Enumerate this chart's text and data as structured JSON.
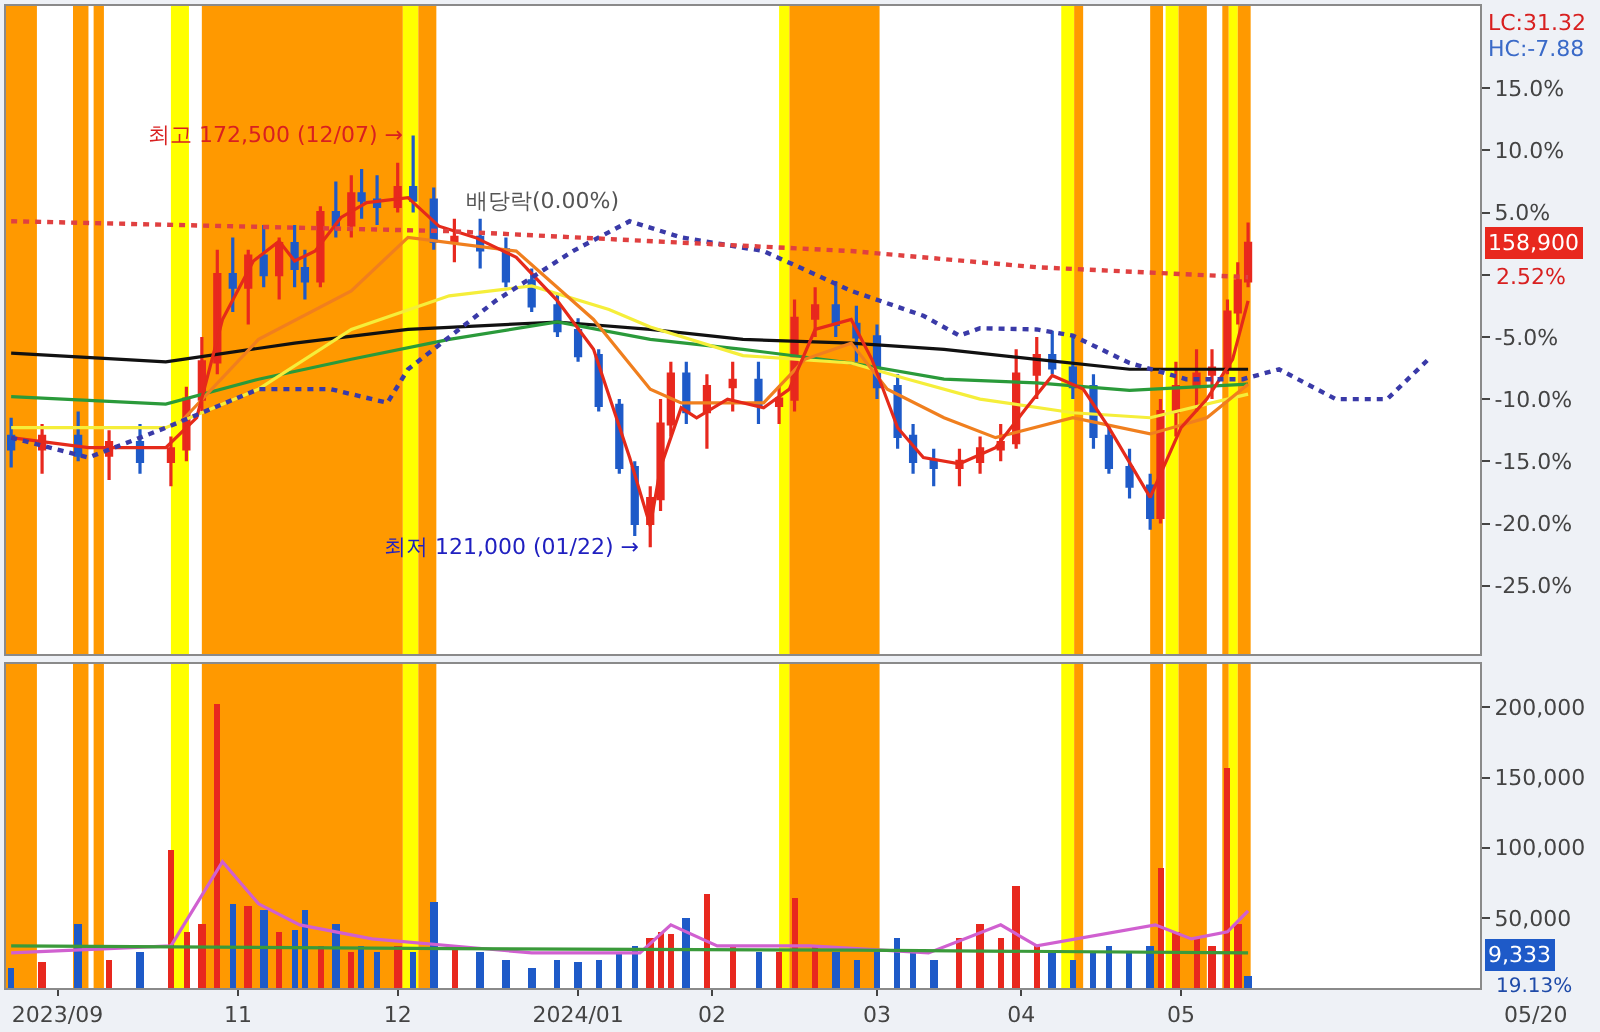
{
  "chart_data": [
    {
      "type": "candlestick",
      "x": [
        "2023-09-20",
        "2023-09-26",
        "2023-10-03",
        "2023-10-09",
        "2023-10-15",
        "2023-10-21",
        "2023-10-24",
        "2023-10-27",
        "2023-10-30",
        "2023-11-02",
        "2023-11-05",
        "2023-11-08",
        "2023-11-11",
        "2023-11-14",
        "2023-11-16",
        "2023-11-19",
        "2023-11-22",
        "2023-11-25",
        "2023-11-27",
        "2023-11-30",
        "2023-12-04",
        "2023-12-07",
        "2023-12-11",
        "2023-12-15",
        "2023-12-20",
        "2023-12-25",
        "2023-12-30",
        "2024-01-04",
        "2024-01-08",
        "2024-01-12",
        "2024-01-16",
        "2024-01-19",
        "2024-01-22",
        "2024-01-24",
        "2024-01-26",
        "2024-01-29",
        "2024-02-02",
        "2024-02-07",
        "2024-02-12",
        "2024-02-16",
        "2024-02-19",
        "2024-02-23",
        "2024-02-27",
        "2024-03-02",
        "2024-03-06",
        "2024-03-10",
        "2024-03-13",
        "2024-03-17",
        "2024-03-22",
        "2024-03-26",
        "2024-03-30",
        "2024-04-02",
        "2024-04-06",
        "2024-04-09",
        "2024-04-13",
        "2024-04-17",
        "2024-04-20",
        "2024-04-24",
        "2024-04-28",
        "2024-04-30",
        "2024-05-03",
        "2024-05-07",
        "2024-05-10",
        "2024-05-13",
        "2024-05-15",
        "2024-05-17"
      ],
      "ohlc": [
        [
          -13,
          -11.5,
          -15.5,
          -14
        ],
        [
          -14,
          -12,
          -16,
          -13
        ],
        [
          -13,
          -11,
          -15,
          -14.5
        ],
        [
          -14.5,
          -12.5,
          -16.5,
          -13.5
        ],
        [
          -13.5,
          -12,
          -16,
          -15
        ],
        [
          -15,
          -13,
          -17,
          -14
        ],
        [
          -14,
          -9,
          -15,
          -10
        ],
        [
          -10,
          -5,
          -11,
          -7
        ],
        [
          -7,
          2,
          -8,
          0
        ],
        [
          0,
          3,
          -3,
          -1
        ],
        [
          -1,
          2,
          -4,
          1.5
        ],
        [
          1.5,
          4,
          -1,
          0
        ],
        [
          0,
          3,
          -2,
          2.5
        ],
        [
          2.5,
          4,
          -1,
          0.5
        ],
        [
          0.5,
          2,
          -2,
          -0.5
        ],
        [
          -0.5,
          5.5,
          -1,
          5
        ],
        [
          5,
          7.5,
          3,
          4
        ],
        [
          4,
          8,
          3,
          6.5
        ],
        [
          6.5,
          8.5,
          4.5,
          6
        ],
        [
          6,
          8,
          4,
          5.5
        ],
        [
          5.5,
          9,
          5,
          7
        ],
        [
          7,
          11.2,
          5,
          6
        ],
        [
          6,
          7,
          2,
          2.7
        ],
        [
          2.7,
          4.5,
          1,
          3
        ],
        [
          3,
          4.5,
          0.5,
          2
        ],
        [
          2,
          3,
          -1,
          -0.5
        ],
        [
          -0.5,
          0.5,
          -3,
          -2.5
        ],
        [
          -2.5,
          -1.5,
          -5,
          -4.5
        ],
        [
          -4.5,
          -3.5,
          -7,
          -6.5
        ],
        [
          -6.5,
          -6,
          -11,
          -10.5
        ],
        [
          -10.5,
          -10,
          -16,
          -15.5
        ],
        [
          -15.5,
          -15,
          -21,
          -20
        ],
        [
          -20,
          -17,
          -21.9,
          -18
        ],
        [
          -18,
          -10,
          -19,
          -12
        ],
        [
          -12,
          -7,
          -13,
          -8
        ],
        [
          -8,
          -7,
          -12,
          -11
        ],
        [
          -11,
          -8,
          -14,
          -9
        ],
        [
          -9,
          -7,
          -11,
          -8.5
        ],
        [
          -8.5,
          -7,
          -12,
          -10.5
        ],
        [
          -10.5,
          -9,
          -12,
          -10
        ],
        [
          -10,
          -2,
          -11,
          -3.5
        ],
        [
          -3.5,
          -1,
          -5,
          -2.5
        ],
        [
          -2.5,
          -0.5,
          -5,
          -4
        ],
        [
          -4,
          -2.5,
          -7,
          -5
        ],
        [
          -5,
          -4,
          -10,
          -9
        ],
        [
          -9,
          -8,
          -14,
          -13
        ],
        [
          -13,
          -12,
          -16,
          -15
        ],
        [
          -15,
          -14,
          -17,
          -15.5
        ],
        [
          -15.5,
          -14,
          -17,
          -15
        ],
        [
          -15,
          -13,
          -16,
          -14
        ],
        [
          -14,
          -12,
          -15,
          -13.5
        ],
        [
          -13.5,
          -6,
          -14,
          -8
        ],
        [
          -8,
          -5,
          -10,
          -6.5
        ],
        [
          -6.5,
          -4.5,
          -8,
          -7.5
        ],
        [
          -7.5,
          -5,
          -10,
          -9
        ],
        [
          -9,
          -8,
          -14,
          -13
        ],
        [
          -13,
          -12,
          -16,
          -15.5
        ],
        [
          -15.5,
          -14,
          -18,
          -17
        ],
        [
          -17,
          -16,
          -20.5,
          -19.5
        ],
        [
          -19.5,
          -10,
          -20,
          -11
        ],
        [
          -11,
          -7,
          -13,
          -9
        ],
        [
          -9,
          -6,
          -11,
          -8
        ],
        [
          -8,
          -6,
          -10,
          -7.5
        ],
        [
          -7.5,
          -2,
          -8,
          -3
        ],
        [
          -3,
          1,
          -4,
          -0.5
        ],
        [
          -0.5,
          4.2,
          -1,
          2.52
        ]
      ],
      "colors": [
        "#1e5ac8",
        "#e8281e",
        "#1e5ac8",
        "#e8281e",
        "#1e5ac8",
        "#e8281e",
        "#e8281e",
        "#e8281e",
        "#e8281e",
        "#1e5ac8",
        "#e8281e",
        "#1e5ac8",
        "#e8281e",
        "#1e5ac8",
        "#1e5ac8",
        "#e8281e",
        "#1e5ac8",
        "#e8281e",
        "#1e5ac8",
        "#1e5ac8",
        "#e8281e",
        "#1e5ac8",
        "#1e5ac8",
        "#e8281e",
        "#1e5ac8",
        "#1e5ac8",
        "#1e5ac8",
        "#1e5ac8",
        "#1e5ac8",
        "#1e5ac8",
        "#1e5ac8",
        "#1e5ac8",
        "#e8281e",
        "#e8281e",
        "#e8281e",
        "#1e5ac8",
        "#e8281e",
        "#e8281e",
        "#1e5ac8",
        "#e8281e",
        "#e8281e",
        "#e8281e",
        "#1e5ac8",
        "#1e5ac8",
        "#1e5ac8",
        "#1e5ac8",
        "#1e5ac8",
        "#1e5ac8",
        "#e8281e",
        "#e8281e",
        "#e8281e",
        "#e8281e",
        "#e8281e",
        "#1e5ac8",
        "#1e5ac8",
        "#1e5ac8",
        "#1e5ac8",
        "#1e5ac8",
        "#1e5ac8",
        "#e8281e",
        "#e8281e",
        "#e8281e",
        "#e8281e",
        "#e8281e",
        "#e8281e",
        "#e8281e"
      ],
      "series": [
        {
          "type": "line",
          "color": "#111111",
          "x": [
            "2023-09-20",
            "2023-10-20",
            "2023-11-14",
            "2023-12-06",
            "2024-01-04",
            "2024-01-22",
            "2024-02-09",
            "2024-03-01",
            "2024-03-19",
            "2024-04-06",
            "2024-04-24",
            "2024-05-17"
          ],
          "values": [
            -6.3,
            -7.0,
            -5.5,
            -4.4,
            -3.8,
            -4.4,
            -5.2,
            -5.5,
            -6.0,
            -6.8,
            -7.6,
            -7.6
          ]
        },
        {
          "type": "line",
          "color": "#2a9a3a",
          "x": [
            "2023-09-20",
            "2023-10-20",
            "2023-11-07",
            "2023-11-25",
            "2023-12-14",
            "2024-01-04",
            "2024-01-22",
            "2024-02-09",
            "2024-03-01",
            "2024-03-19",
            "2024-04-06",
            "2024-04-24",
            "2024-05-17"
          ],
          "values": [
            -9.8,
            -10.4,
            -8.4,
            -6.8,
            -5.2,
            -3.8,
            -5.2,
            -6.0,
            -7.1,
            -8.4,
            -8.7,
            -9.3,
            -8.8
          ]
        },
        {
          "type": "line",
          "color": "#f5ee3a",
          "x": [
            "2023-09-20",
            "2023-10-20",
            "2023-11-07",
            "2023-11-25",
            "2023-12-14",
            "2023-12-30",
            "2024-01-14",
            "2024-01-22",
            "2024-02-09",
            "2024-03-01",
            "2024-03-12",
            "2024-03-26",
            "2024-04-13",
            "2024-04-28",
            "2024-05-17"
          ],
          "values": [
            -12.3,
            -12.3,
            -9.2,
            -4.4,
            -1.7,
            -0.9,
            -2.8,
            -4.2,
            -6.5,
            -7.1,
            -8.4,
            -10.0,
            -11.1,
            -11.5,
            -9.6
          ]
        },
        {
          "type": "line",
          "color": "#f07f1e",
          "x": [
            "2023-10-23",
            "2023-11-07",
            "2023-11-25",
            "2023-12-06",
            "2023-12-27",
            "2024-01-11",
            "2024-01-22",
            "2024-01-28",
            "2024-02-13",
            "2024-02-21",
            "2024-03-01",
            "2024-03-08",
            "2024-03-19",
            "2024-03-29",
            "2024-04-13",
            "2024-04-28",
            "2024-05-09",
            "2024-05-17"
          ],
          "values": [
            -11.8,
            -5.2,
            -1.3,
            3.0,
            1.9,
            -3.6,
            -9.2,
            -10.3,
            -10.3,
            -6.8,
            -5.5,
            -9.2,
            -11.5,
            -13.1,
            -11.5,
            -12.8,
            -11.5,
            -8.8
          ]
        },
        {
          "type": "line",
          "color": "#e52a1a",
          "x": [
            "2023-09-20",
            "2023-10-05",
            "2023-10-20",
            "2023-10-26",
            "2023-10-31",
            "2023-11-06",
            "2023-11-11",
            "2023-11-14",
            "2023-11-18",
            "2023-11-23",
            "2023-11-28",
            "2023-12-06",
            "2023-12-12",
            "2023-12-19",
            "2023-12-27",
            "2024-01-04",
            "2024-01-11",
            "2024-01-18",
            "2024-01-22",
            "2024-01-24",
            "2024-01-28",
            "2024-01-31",
            "2024-02-06",
            "2024-02-13",
            "2024-02-18",
            "2024-02-23",
            "2024-03-01",
            "2024-03-05",
            "2024-03-10",
            "2024-03-15",
            "2024-03-22",
            "2024-03-29",
            "2024-04-04",
            "2024-04-09",
            "2024-04-15",
            "2024-04-20",
            "2024-04-28",
            "2024-05-04",
            "2024-05-09",
            "2024-05-14",
            "2024-05-17"
          ],
          "values": [
            -13.1,
            -13.9,
            -13.9,
            -11.5,
            -3.6,
            1.1,
            2.7,
            1.1,
            1.9,
            4.6,
            5.8,
            6.2,
            3.9,
            3.0,
            1.4,
            -2.1,
            -6.0,
            -14.7,
            -20.2,
            -15.5,
            -10.7,
            -11.5,
            -10.0,
            -10.7,
            -9.2,
            -4.4,
            -3.6,
            -6.8,
            -12.3,
            -14.7,
            -15.2,
            -13.9,
            -10.7,
            -8.1,
            -9.2,
            -12.3,
            -17.9,
            -12.3,
            -10.0,
            -6.8,
            -2.1
          ]
        },
        {
          "type": "line",
          "color": "#3a3aa8",
          "line_style": "dotted",
          "x": [
            "2023-09-20",
            "2023-10-05",
            "2023-10-20",
            "2023-11-07",
            "2023-11-21",
            "2023-12-02",
            "2023-12-06",
            "2023-12-23",
            "2024-01-07",
            "2024-01-18",
            "2024-01-28",
            "2024-02-13",
            "2024-03-01",
            "2024-03-15",
            "2024-03-22",
            "2024-03-26",
            "2024-04-06",
            "2024-04-13",
            "2024-04-24",
            "2024-05-05",
            "2024-05-16",
            "2024-05-23",
            "2024-06-03",
            "2024-06-13",
            "2024-06-21"
          ],
          "values": [
            -13.1,
            -14.7,
            -12.3,
            -9.2,
            -9.2,
            -10.3,
            -7.6,
            -2.1,
            1.9,
            4.3,
            3.0,
            1.9,
            -1.3,
            -3.3,
            -4.9,
            -4.3,
            -4.4,
            -4.9,
            -7.1,
            -8.4,
            -8.4,
            -7.6,
            -10.0,
            -10.0,
            -6.8
          ]
        },
        {
          "type": "line",
          "color": "#e04040",
          "line_style": "dotted",
          "x": [
            "2023-09-20",
            "2023-12-14",
            "2024-03-01",
            "2024-04-06",
            "2024-05-17"
          ],
          "values": [
            4.3,
            3.5,
            1.9,
            0.6,
            -0.2
          ]
        }
      ],
      "xlim": [
        "2023-09-19",
        "2024-07-01"
      ],
      "ylim": [
        -30.5,
        21.6
      ],
      "yticks": [
        {
          "value": 15,
          "label": "15.0%"
        },
        {
          "value": 10,
          "label": "10.0%"
        },
        {
          "value": 5,
          "label": "5.0%"
        },
        {
          "value": 0,
          "label": null
        },
        {
          "value": -5,
          "label": "-5.0%"
        },
        {
          "value": -10,
          "label": "-10.0%"
        },
        {
          "value": -15,
          "label": "-15.0%"
        },
        {
          "value": -20,
          "label": "-20.0%"
        },
        {
          "value": -25,
          "label": "-25.0%"
        }
      ],
      "tick_labels": "y",
      "grid": false,
      "bands": [
        {
          "axis": "x",
          "from": "2023-09-19",
          "to": "2023-09-25",
          "color": "#ff9900"
        },
        {
          "axis": "x",
          "from": "2023-10-02",
          "to": "2023-10-05",
          "color": "#ff9900"
        },
        {
          "axis": "x",
          "from": "2023-10-06",
          "to": "2023-10-08",
          "color": "#ff9900"
        },
        {
          "axis": "x",
          "from": "2023-10-21",
          "to": "2023-10-24T12:00",
          "color": "#ffff00"
        },
        {
          "axis": "x",
          "from": "2023-10-27",
          "to": "2023-12-05",
          "color": "#ff9900"
        },
        {
          "axis": "x",
          "from": "2023-12-05",
          "to": "2023-12-08",
          "color": "#ffff00"
        },
        {
          "axis": "x",
          "from": "2023-12-08",
          "to": "2023-12-11T12:00",
          "color": "#ff9900"
        },
        {
          "axis": "x",
          "from": "2024-02-16",
          "to": "2024-02-18",
          "color": "#ffff00"
        },
        {
          "axis": "x",
          "from": "2024-02-18",
          "to": "2024-03-06T12:00",
          "color": "#ff9900"
        },
        {
          "axis": "x",
          "from": "2024-04-10T18:00",
          "to": "2024-04-13T06:00",
          "color": "#ffff00"
        },
        {
          "axis": "x",
          "from": "2024-04-13T06:00",
          "to": "2024-04-15",
          "color": "#ff9900"
        },
        {
          "axis": "x",
          "from": "2024-04-28",
          "to": "2024-04-30T12:00",
          "color": "#ff9900"
        },
        {
          "axis": "x",
          "from": "2024-05-01",
          "to": "2024-05-03T12:00",
          "color": "#ffff00"
        },
        {
          "axis": "x",
          "from": "2024-05-03T12:00",
          "to": "2024-05-09",
          "color": "#ff9900"
        },
        {
          "axis": "x",
          "from": "2024-05-12",
          "to": "2024-05-13T06:00",
          "color": "#ff9900"
        },
        {
          "axis": "x",
          "from": "2024-05-13T06:00",
          "to": "2024-05-15",
          "color": "#ffff00"
        },
        {
          "axis": "x",
          "from": "2024-05-15",
          "to": "2024-05-17T12:00",
          "color": "#ff9900"
        }
      ],
      "annotations": [
        {
          "text": "최고 172,500 (12/07) →",
          "x": "2023-12-07",
          "y": 11.2
        },
        {
          "text": "최저 121,000 (01/22) →",
          "x": "2024-01-22",
          "y": -21.9
        },
        {
          "text": "배당락(0.00%)",
          "x": "2023-12-15",
          "y": 4.5
        },
        "LC:31.32",
        "HC:-7.88",
        "158,900",
        "2.52%"
      ]
    },
    {
      "type": "bar",
      "x": [
        "2023-09-20",
        "2023-09-26",
        "2023-10-03",
        "2023-10-09",
        "2023-10-15",
        "2023-10-21",
        "2023-10-24",
        "2023-10-27",
        "2023-10-30",
        "2023-11-02",
        "2023-11-05",
        "2023-11-08",
        "2023-11-11",
        "2023-11-14",
        "2023-11-16",
        "2023-11-19",
        "2023-11-22",
        "2023-11-25",
        "2023-11-27",
        "2023-11-30",
        "2023-12-04",
        "2023-12-07",
        "2023-12-11",
        "2023-12-15",
        "2023-12-20",
        "2023-12-25",
        "2023-12-30",
        "2024-01-04",
        "2024-01-08",
        "2024-01-12",
        "2024-01-16",
        "2024-01-19",
        "2024-01-22",
        "2024-01-24",
        "2024-01-26",
        "2024-01-29",
        "2024-02-02",
        "2024-02-07",
        "2024-02-12",
        "2024-02-16",
        "2024-02-19",
        "2024-02-23",
        "2024-02-27",
        "2024-03-02",
        "2024-03-06",
        "2024-03-10",
        "2024-03-13",
        "2024-03-17",
        "2024-03-22",
        "2024-03-26",
        "2024-03-30",
        "2024-04-02",
        "2024-04-06",
        "2024-04-09",
        "2024-04-13",
        "2024-04-17",
        "2024-04-20",
        "2024-04-24",
        "2024-04-28",
        "2024-04-30",
        "2024-05-03",
        "2024-05-07",
        "2024-05-10",
        "2024-05-13",
        "2024-05-15",
        "2024-05-17"
      ],
      "values": [
        15000,
        18000,
        45000,
        20000,
        25000,
        98000,
        40000,
        45000,
        203000,
        60000,
        58000,
        55000,
        40000,
        42000,
        55000,
        30000,
        45000,
        25000,
        30000,
        25000,
        30000,
        25000,
        61000,
        30000,
        25000,
        20000,
        15000,
        20000,
        18000,
        20000,
        25000,
        30000,
        35000,
        40000,
        38000,
        50000,
        67000,
        30000,
        25000,
        25000,
        64000,
        30000,
        25000,
        20000,
        25000,
        35000,
        25000,
        20000,
        35000,
        45000,
        35000,
        73000,
        30000,
        25000,
        20000,
        25000,
        30000,
        25000,
        30000,
        86000,
        40000,
        35000,
        30000,
        157000,
        45000,
        9000
      ],
      "colors": [
        "#1e5ac8",
        "#e8281e",
        "#1e5ac8",
        "#e8281e",
        "#1e5ac8",
        "#e8281e",
        "#e8281e",
        "#e8281e",
        "#e8281e",
        "#1e5ac8",
        "#e8281e",
        "#1e5ac8",
        "#e8281e",
        "#1e5ac8",
        "#1e5ac8",
        "#e8281e",
        "#1e5ac8",
        "#e8281e",
        "#1e5ac8",
        "#1e5ac8",
        "#e8281e",
        "#1e5ac8",
        "#1e5ac8",
        "#e8281e",
        "#1e5ac8",
        "#1e5ac8",
        "#1e5ac8",
        "#1e5ac8",
        "#1e5ac8",
        "#1e5ac8",
        "#1e5ac8",
        "#1e5ac8",
        "#e8281e",
        "#e8281e",
        "#e8281e",
        "#1e5ac8",
        "#e8281e",
        "#e8281e",
        "#1e5ac8",
        "#e8281e",
        "#e8281e",
        "#e8281e",
        "#1e5ac8",
        "#1e5ac8",
        "#1e5ac8",
        "#1e5ac8",
        "#1e5ac8",
        "#1e5ac8",
        "#e8281e",
        "#e8281e",
        "#e8281e",
        "#e8281e",
        "#e8281e",
        "#1e5ac8",
        "#1e5ac8",
        "#1e5ac8",
        "#1e5ac8",
        "#1e5ac8",
        "#1e5ac8",
        "#e8281e",
        "#e8281e",
        "#e8281e",
        "#e8281e",
        "#e8281e",
        "#e8281e",
        "#1e5ac8"
      ],
      "series": [
        {
          "type": "line",
          "color": "#d060d0",
          "x": [
            "2023-09-20",
            "2023-10-21",
            "2023-10-31",
            "2023-11-07",
            "2023-11-15",
            "2023-11-29",
            "2023-12-30",
            "2024-01-20",
            "2024-01-26",
            "2024-02-04",
            "2024-02-22",
            "2024-03-16",
            "2024-03-30",
            "2024-04-06",
            "2024-04-29",
            "2024-05-06",
            "2024-05-13",
            "2024-05-17"
          ],
          "values": [
            25000,
            30000,
            90000,
            60000,
            45000,
            35000,
            25000,
            25000,
            45000,
            30000,
            30000,
            25000,
            45000,
            30000,
            45000,
            35000,
            40000,
            55000
          ]
        },
        {
          "type": "line",
          "color": "#3a9a3a",
          "x": [
            "2023-09-20",
            "2023-12-15",
            "2024-03-02",
            "2024-05-17"
          ],
          "values": [
            30000,
            28000,
            27000,
            25000
          ]
        }
      ],
      "xlim": [
        "2023-09-19",
        "2024-07-01"
      ],
      "xticks": [
        {
          "value": "2023-09-29",
          "label": "2023/09"
        },
        {
          "value": "2023-11-03",
          "label": "11"
        },
        {
          "value": "2023-12-04",
          "label": "12"
        },
        {
          "value": "2024-01-08",
          "label": "2024/01"
        },
        {
          "value": "2024-02-03",
          "label": "02"
        },
        {
          "value": "2024-03-06",
          "label": "03"
        },
        {
          "value": "2024-04-03",
          "label": "04"
        },
        {
          "value": "2024-05-04",
          "label": "05"
        }
      ],
      "ylim": [
        0,
        231000
      ],
      "yticks": [
        {
          "value": 50000,
          "label": "50,000"
        },
        {
          "value": 100000,
          "label": "100,000"
        },
        {
          "value": 150000,
          "label": "150,000"
        },
        {
          "value": 200000,
          "label": "200,000"
        }
      ],
      "grid": false,
      "bands": [
        {
          "axis": "x",
          "from": "2023-09-19",
          "to": "2023-09-25",
          "color": "#ff9900"
        },
        {
          "axis": "x",
          "from": "2023-10-02",
          "to": "2023-10-05",
          "color": "#ff9900"
        },
        {
          "axis": "x",
          "from": "2023-10-06",
          "to": "2023-10-08",
          "color": "#ff9900"
        },
        {
          "axis": "x",
          "from": "2023-10-21",
          "to": "2023-10-24T12:00",
          "color": "#ffff00"
        },
        {
          "axis": "x",
          "from": "2023-10-27",
          "to": "2023-12-05",
          "color": "#ff9900"
        },
        {
          "axis": "x",
          "from": "2023-12-05",
          "to": "2023-12-08",
          "color": "#ffff00"
        },
        {
          "axis": "x",
          "from": "2023-12-08",
          "to": "2023-12-11T12:00",
          "color": "#ff9900"
        },
        {
          "axis": "x",
          "from": "2024-02-16",
          "to": "2024-02-18",
          "color": "#ffff00"
        },
        {
          "axis": "x",
          "from": "2024-02-18",
          "to": "2024-03-06T12:00",
          "color": "#ff9900"
        },
        {
          "axis": "x",
          "from": "2024-04-10T18:00",
          "to": "2024-04-13T06:00",
          "color": "#ffff00"
        },
        {
          "axis": "x",
          "from": "2024-04-13T06:00",
          "to": "2024-04-15",
          "color": "#ff9900"
        },
        {
          "axis": "x",
          "from": "2024-04-28",
          "to": "2024-04-30T12:00",
          "color": "#ff9900"
        },
        {
          "axis": "x",
          "from": "2024-05-01",
          "to": "2024-05-03T12:00",
          "color": "#ffff00"
        },
        {
          "axis": "x",
          "from": "2024-05-03T12:00",
          "to": "2024-05-09",
          "color": "#ff9900"
        },
        {
          "axis": "x",
          "from": "2024-05-12",
          "to": "2024-05-13T06:00",
          "color": "#ff9900"
        },
        {
          "axis": "x",
          "from": "2024-05-13T06:00",
          "to": "2024-05-15",
          "color": "#ffff00"
        },
        {
          "axis": "x",
          "from": "2024-05-15",
          "to": "2024-05-17T12:00",
          "color": "#ff9900"
        }
      ],
      "annotations": [
        "9,333",
        "19.13%",
        "05/20"
      ]
    }
  ]
}
